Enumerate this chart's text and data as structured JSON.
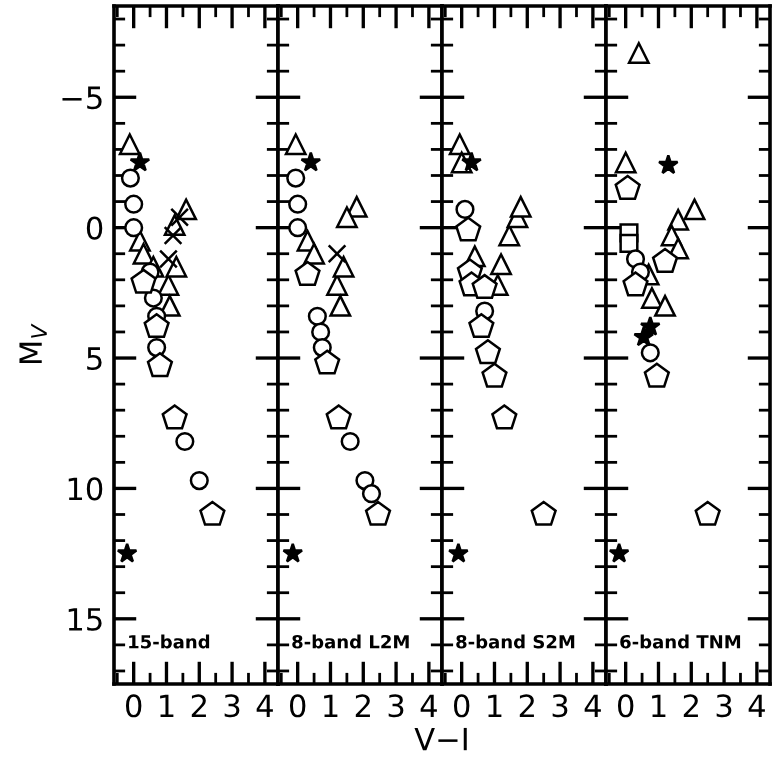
{
  "chart_data": [
    {
      "type": "scatter",
      "xlabel": "V−I",
      "ylabel": "M$_{V}$",
      "annotations": [
        "15-band"
      ],
      "xlim": [
        -0.6,
        4.4
      ],
      "ylim": [
        17.5,
        -8.5
      ],
      "xticks": [
        0,
        1,
        2,
        3,
        4
      ],
      "yticks": [
        -5,
        0,
        5,
        10,
        15
      ],
      "grid": false,
      "legend": false,
      "series": [
        {
          "marker": "triangle",
          "color": "#000000",
          "x": [
            -0.12,
            0.19,
            0.3,
            1.06,
            1.6,
            1.25,
            1.3,
            1.1,
            0.6
          ],
          "values": [
            -3.2,
            0.5,
            1.0,
            2.2,
            -0.7,
            -0.1,
            1.5,
            3.0,
            1.5
          ]
        },
        {
          "marker": "circle",
          "color": "#000000",
          "x": [
            -0.1,
            0,
            0,
            0.5,
            0.6,
            0.7,
            0.7,
            1.56,
            2.0
          ],
          "values": [
            -1.9,
            -0.9,
            0,
            1.7,
            2.7,
            3.4,
            4.6,
            8.2,
            9.7
          ]
        },
        {
          "color": "#000000",
          "x": [
            0.3,
            0.7,
            0.8,
            1.25,
            2.4
          ],
          "values": [
            2.1,
            3.8,
            5.3,
            7.3,
            11.0
          ]
        },
        {
          "marker": "star",
          "color": "#000000",
          "x": [
            0.19,
            -0.2
          ],
          "values": [
            -2.5,
            12.5
          ]
        },
        {
          "marker": "cross",
          "color": "#000000",
          "x": [
            1.4,
            1.2,
            1.06
          ],
          "values": [
            -0.4,
            0.3,
            1.2
          ]
        }
      ]
    },
    {
      "type": "scatter",
      "annotations": [
        "8-band L2M"
      ],
      "xlim": [
        -0.6,
        4.4
      ],
      "ylim": [
        17.5,
        -8.5
      ],
      "xticks": [
        0,
        1,
        2,
        3,
        4
      ],
      "yticks": [
        -5,
        0,
        5,
        10,
        15
      ],
      "tick_labels": "x",
      "grid": false,
      "legend": false,
      "series": [
        {
          "marker": "triangle",
          "color": "#000000",
          "x": [
            -0.06,
            0.3,
            0.5,
            1.2,
            1.4,
            1.8,
            1.5,
            1.3
          ],
          "values": [
            -3.2,
            0.5,
            1.0,
            2.2,
            1.5,
            -0.8,
            -0.4,
            3.0
          ]
        },
        {
          "marker": "circle",
          "color": "#000000",
          "x": [
            -0.06,
            0,
            0,
            0.6,
            0.7,
            0.75,
            1.6,
            2.05,
            2.25
          ],
          "values": [
            -1.9,
            -0.9,
            0,
            3.4,
            4.0,
            4.6,
            8.2,
            9.7,
            10.2
          ]
        },
        {
          "color": "#000000",
          "x": [
            0.3,
            0.9,
            1.25,
            2.45
          ],
          "values": [
            1.8,
            5.2,
            7.3,
            11.0
          ]
        },
        {
          "marker": "star",
          "color": "#000000",
          "x": [
            0.4,
            -0.15
          ],
          "values": [
            -2.5,
            12.5
          ]
        },
        {
          "marker": "cross",
          "color": "#000000",
          "x": [
            1.2
          ],
          "values": [
            1.0
          ]
        }
      ]
    },
    {
      "type": "scatter",
      "annotations": [
        "8-band S2M"
      ],
      "xlim": [
        -0.6,
        4.4
      ],
      "ylim": [
        17.5,
        -8.5
      ],
      "xticks": [
        0,
        1,
        2,
        3,
        4
      ],
      "yticks": [
        -5,
        0,
        5,
        10,
        15
      ],
      "tick_labels": "x",
      "grid": false,
      "legend": false,
      "series": [
        {
          "marker": "triangle",
          "color": "#000000",
          "x": [
            -0.06,
            0,
            0.4,
            1.45,
            1.7,
            1.8,
            1.2,
            1.1
          ],
          "values": [
            -3.2,
            -2.5,
            1.1,
            0.3,
            -0.4,
            -0.8,
            1.4,
            2.2
          ]
        },
        {
          "marker": "circle",
          "color": "#000000",
          "x": [
            0.1,
            0.7
          ],
          "values": [
            -0.7,
            3.2
          ]
        },
        {
          "color": "#000000",
          "x": [
            0.2,
            0.25,
            0.3,
            0.7,
            0.6,
            0.8,
            1.0,
            1.3,
            2.5
          ],
          "values": [
            0.1,
            1.7,
            2.2,
            2.3,
            3.8,
            4.8,
            5.7,
            7.3,
            11.0
          ]
        },
        {
          "marker": "star",
          "color": "#000000",
          "x": [
            0.3,
            -0.1
          ],
          "values": [
            -2.5,
            12.5
          ]
        }
      ]
    },
    {
      "type": "scatter",
      "annotations": [
        "6-band TNM"
      ],
      "xlim": [
        -0.6,
        4.4
      ],
      "ylim": [
        17.5,
        -8.5
      ],
      "xticks": [
        0,
        1,
        2,
        3,
        4
      ],
      "yticks": [
        -5,
        0,
        5,
        10,
        15
      ],
      "tick_labels": "x",
      "grid": false,
      "legend": false,
      "series": [
        {
          "marker": "triangle",
          "color": "#000000",
          "x": [
            0.4,
            0,
            2.1,
            1.6,
            1.4,
            1.6,
            0.7,
            0.8,
            1.2
          ],
          "values": [
            -6.7,
            -2.5,
            -0.7,
            -0.3,
            0.3,
            0.8,
            1.8,
            2.7,
            3.0
          ]
        },
        {
          "marker": "square",
          "color": "#000000",
          "x": [
            0.1,
            0.1
          ],
          "values": [
            0.2,
            0.6
          ]
        },
        {
          "marker": "circle",
          "color": "#000000",
          "x": [
            0.3,
            0.45,
            0.75
          ],
          "values": [
            1.2,
            1.7,
            4.8
          ]
        },
        {
          "color": "#000000",
          "x": [
            0.06,
            1.2,
            0.3,
            0.95,
            2.5
          ],
          "values": [
            -1.5,
            1.3,
            2.2,
            5.7,
            11.0
          ]
        },
        {
          "marker": "star",
          "color": "#000000",
          "x": [
            1.3,
            0.75,
            0.55,
            -0.2
          ],
          "values": [
            -2.4,
            3.8,
            4.2,
            12.5
          ]
        }
      ]
    }
  ]
}
